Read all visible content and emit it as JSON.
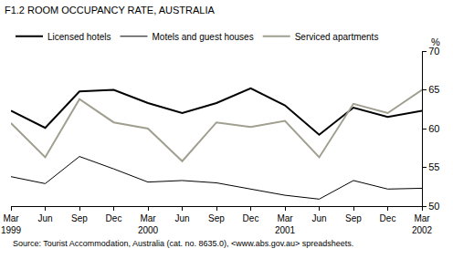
{
  "chart_data": {
    "type": "line",
    "title": "F1.2 ROOM OCCUPANCY RATE, AUSTRALIA",
    "y_label": "%",
    "note": "Source: Tourist Accommodation, Australia (cat. no. 8635.0), <www.abs.gov.au> spreadsheets.",
    "categories": [
      "Mar 1999",
      "Jun",
      "Sep",
      "Dec",
      "Mar 2000",
      "Jun",
      "Sep",
      "Dec",
      "Mar 2001",
      "Jun",
      "Sep",
      "Dec",
      "Mar 2002"
    ],
    "series": [
      {
        "name": "Licensed hotels",
        "color": "#000000",
        "line_style": "solid",
        "values": [
          62.3,
          60.1,
          64.8,
          65.0,
          63.3,
          62.0,
          63.3,
          65.2,
          63.0,
          59.2,
          62.7,
          61.5,
          62.3
        ]
      },
      {
        "name": "Motels and guest houses",
        "color": "#000000",
        "line_style": "solid",
        "values": [
          53.8,
          52.9,
          56.4,
          54.8,
          53.1,
          53.3,
          53.0,
          52.2,
          51.4,
          50.9,
          53.3,
          52.2,
          52.3
        ]
      },
      {
        "name": "Serviced apartments",
        "color": "#a19f8f",
        "line_style": "solid",
        "values": [
          60.7,
          56.3,
          63.8,
          60.8,
          60.0,
          55.8,
          60.8,
          60.2,
          61.0,
          56.3,
          63.2,
          62.0,
          65.0
        ]
      }
    ],
    "ylim": [
      50,
      70
    ],
    "yticks": [
      50,
      55,
      60,
      65,
      70
    ],
    "grid": false,
    "legend": "top left"
  }
}
